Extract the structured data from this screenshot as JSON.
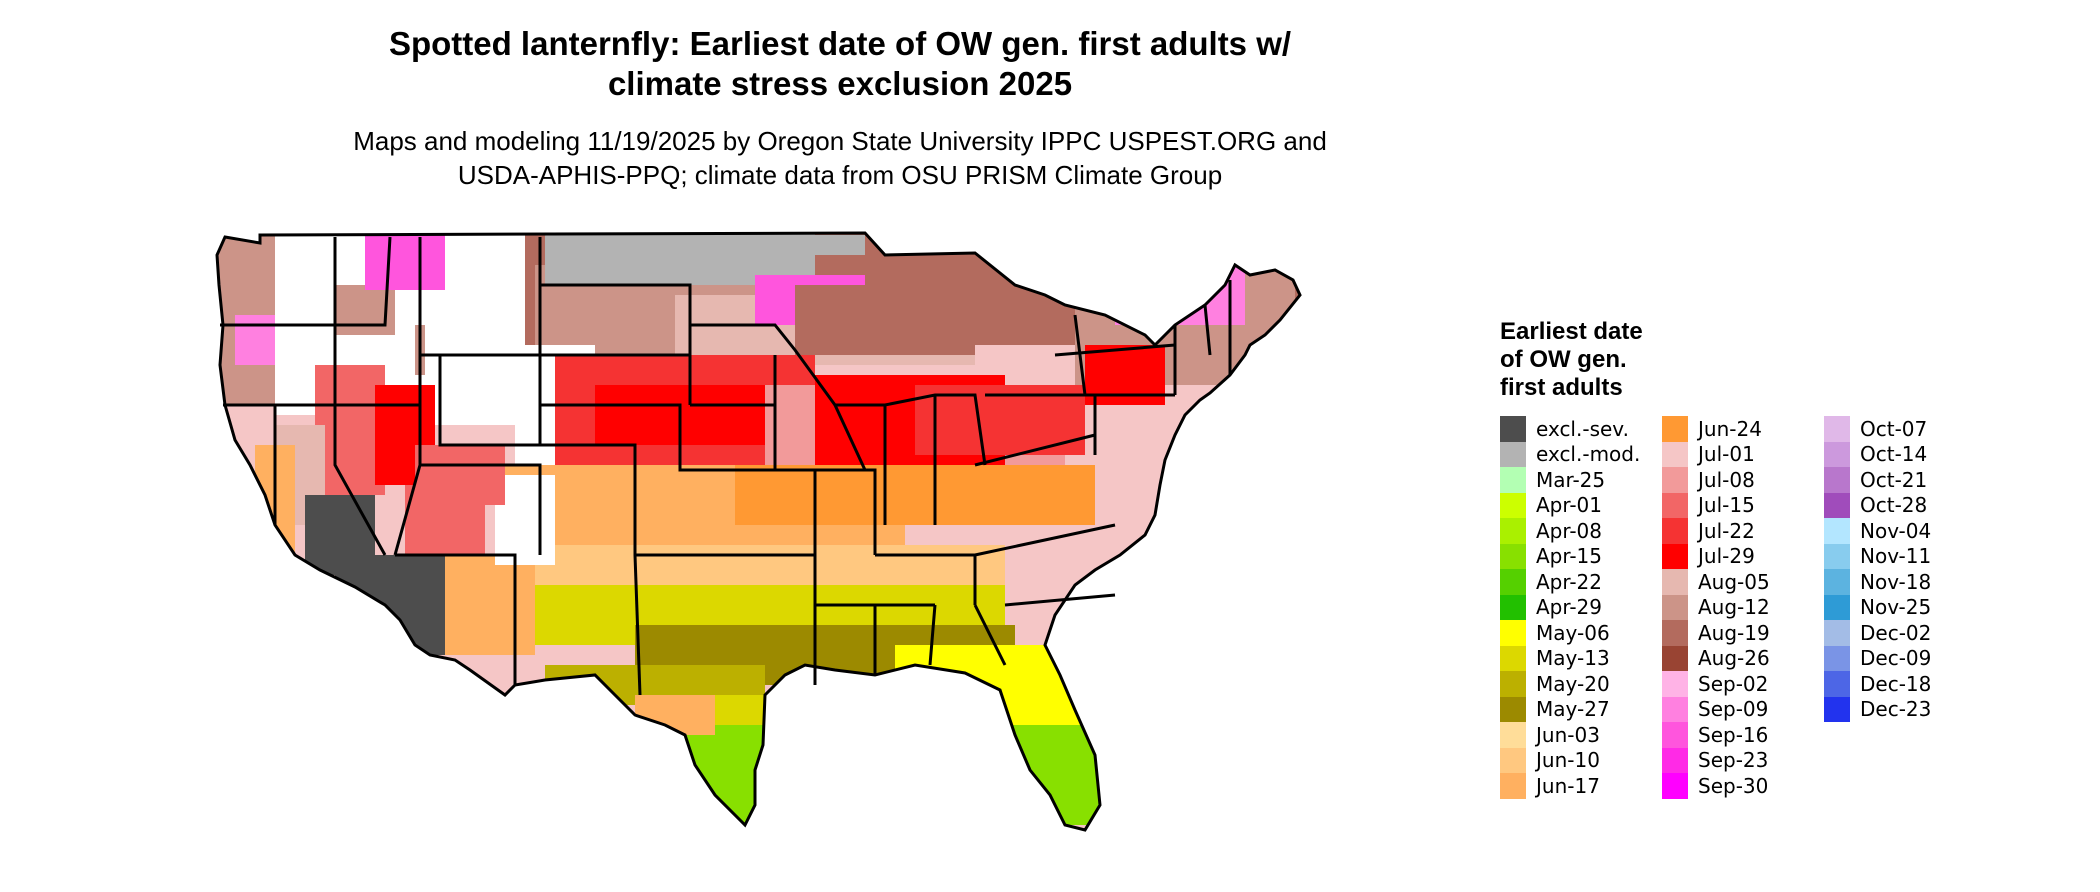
{
  "title_line1": "Spotted lanternfly: Earliest date of OW gen. first adults w/",
  "title_line2": "climate stress exclusion 2025",
  "subtitle_line1": "Maps and modeling 11/19/2025 by Oregon State University IPPC USPEST.ORG and",
  "subtitle_line2": "USDA-APHIS-PPQ; climate data from OSU PRISM Climate Group",
  "legend": {
    "title_line1": "Earliest date",
    "title_line2": "of OW gen.",
    "title_line3": "first adults",
    "columns": [
      [
        {
          "label": "excl.-sev.",
          "color": "#4d4d4d"
        },
        {
          "label": "excl.-mod.",
          "color": "#b3b3b3"
        },
        {
          "label": "Mar-25",
          "color": "#b3ffb3"
        },
        {
          "label": "Apr-01",
          "color": "#ccff00"
        },
        {
          "label": "Apr-08",
          "color": "#aaf000"
        },
        {
          "label": "Apr-15",
          "color": "#88e000"
        },
        {
          "label": "Apr-22",
          "color": "#55d000"
        },
        {
          "label": "Apr-29",
          "color": "#22c000"
        },
        {
          "label": "May-06",
          "color": "#ffff00"
        },
        {
          "label": "May-13",
          "color": "#dcd800"
        },
        {
          "label": "May-20",
          "color": "#bcb000"
        },
        {
          "label": "May-27",
          "color": "#9c8a00"
        },
        {
          "label": "Jun-03",
          "color": "#ffdd99"
        },
        {
          "label": "Jun-10",
          "color": "#ffc880"
        },
        {
          "label": "Jun-17",
          "color": "#ffb060"
        }
      ],
      [
        {
          "label": "Jun-24",
          "color": "#ff9933"
        },
        {
          "label": "Jul-01",
          "color": "#f5c6c6"
        },
        {
          "label": "Jul-08",
          "color": "#f29a9a"
        },
        {
          "label": "Jul-15",
          "color": "#f26666"
        },
        {
          "label": "Jul-22",
          "color": "#f53333"
        },
        {
          "label": "Jul-29",
          "color": "#ff0000"
        },
        {
          "label": "Aug-05",
          "color": "#e6b8b0"
        },
        {
          "label": "Aug-12",
          "color": "#cc9488"
        },
        {
          "label": "Aug-19",
          "color": "#b36b5e"
        },
        {
          "label": "Aug-26",
          "color": "#994433"
        },
        {
          "label": "Sep-02",
          "color": "#ffb3e6"
        },
        {
          "label": "Sep-09",
          "color": "#ff80e0"
        },
        {
          "label": "Sep-16",
          "color": "#ff55dd"
        },
        {
          "label": "Sep-23",
          "color": "#ff2ae6"
        },
        {
          "label": "Sep-30",
          "color": "#ff00ff"
        }
      ],
      [
        {
          "label": "Oct-07",
          "color": "#e0b8e8"
        },
        {
          "label": "Oct-14",
          "color": "#cc99dd"
        },
        {
          "label": "Oct-21",
          "color": "#b877cc"
        },
        {
          "label": "Oct-28",
          "color": "#a04cbb"
        },
        {
          "label": "Nov-04",
          "color": "#b3e6ff"
        },
        {
          "label": "Nov-11",
          "color": "#88ccee"
        },
        {
          "label": "Nov-18",
          "color": "#5cb3e0"
        },
        {
          "label": "Nov-25",
          "color": "#2e9bd6"
        },
        {
          "label": "Dec-02",
          "color": "#a3bce6"
        },
        {
          "label": "Dec-09",
          "color": "#7a94e6"
        },
        {
          "label": "Dec-18",
          "color": "#4d66e6"
        },
        {
          "label": "Dec-23",
          "color": "#2233ee"
        }
      ]
    ]
  }
}
